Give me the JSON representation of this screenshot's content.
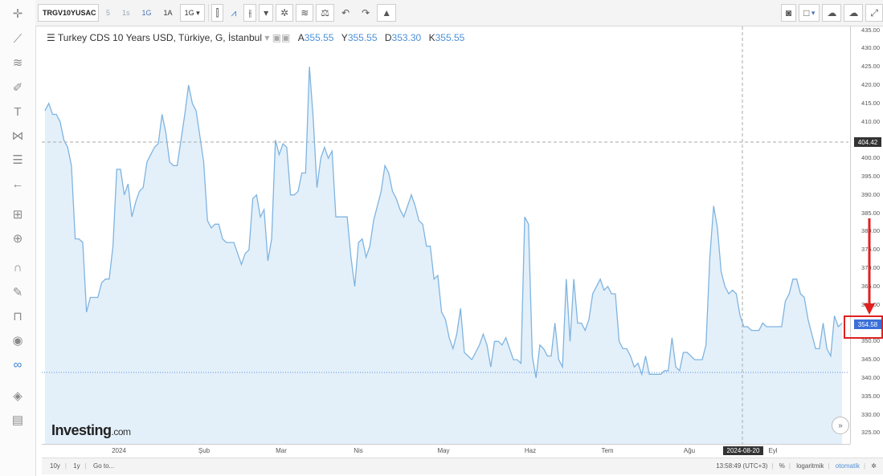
{
  "toolbar": {
    "symbol": "TRGV10YUSAC",
    "intervals": [
      "5",
      "1s",
      "1G",
      "1A",
      "1G"
    ],
    "active_interval": "1G"
  },
  "legend": {
    "title": "Turkey CDS 10 Years USD, Türkiye, G, İstanbul",
    "open_label": "A",
    "open_value": "355.55",
    "high_label": "Y",
    "high_value": "355.55",
    "low_label": "D",
    "low_value": "353.30",
    "close_label": "K",
    "close_value": "355.55"
  },
  "brand": {
    "name": "Investing",
    "suffix": ".com"
  },
  "crosshair": {
    "price_label": "404.42",
    "date_label": "2024-08-20"
  },
  "last_price_label": "354.58",
  "bottom_bar": {
    "ranges": [
      "10y",
      "1y",
      "Go to..."
    ],
    "time": "13:58:49 (UTC+3)",
    "percent": "%",
    "log": "logaritmik",
    "auto": "otomatik"
  },
  "colors": {
    "line": "#7fb4e0",
    "fill": "#e3f0fa",
    "accent": "#3a6fd8",
    "annotation": "#e02020"
  },
  "chart_data": {
    "type": "area",
    "title": "Turkey CDS 10 Years USD, Türkiye, G, İstanbul",
    "ylim": [
      322,
      436
    ],
    "yticks": [
      325,
      330,
      335,
      340,
      345,
      350,
      355,
      360,
      365,
      370,
      375,
      380,
      385,
      390,
      395,
      400,
      405,
      410,
      415,
      420,
      425,
      430,
      435
    ],
    "x_tick_labels": [
      "2024",
      "Şub",
      "Mar",
      "Nis",
      "May",
      "Haz",
      "Tem",
      "Ağu",
      "Eyl"
    ],
    "horizontal_line": 341.5,
    "series": [
      {
        "values": [
          413,
          415,
          412,
          412,
          410,
          405,
          403,
          398,
          378,
          378,
          377,
          358,
          362,
          362,
          362,
          366,
          367,
          367,
          376,
          397,
          397,
          390,
          393,
          384,
          388,
          391,
          392,
          399,
          401,
          403,
          404,
          412,
          407,
          399,
          398,
          398,
          405,
          412,
          420,
          415,
          413,
          406,
          399,
          383,
          381,
          382,
          382,
          378,
          377,
          377,
          377,
          374,
          371,
          374,
          375,
          389,
          390,
          384,
          386,
          372,
          378,
          405,
          401,
          404,
          403,
          390,
          390,
          391,
          396,
          396,
          425,
          411,
          392,
          400,
          403,
          400,
          402,
          384,
          384,
          384,
          384,
          373,
          365,
          377,
          378,
          373,
          376,
          383,
          387,
          391,
          398,
          396,
          391,
          389,
          386,
          384,
          387,
          390,
          387,
          383,
          382,
          376,
          376,
          367,
          368,
          358,
          356,
          351,
          348,
          352,
          359,
          347,
          346,
          345,
          347,
          349,
          352,
          349,
          343,
          350,
          350,
          349,
          351,
          348,
          345,
          345,
          344,
          384,
          382,
          346,
          340,
          349,
          348,
          346,
          346,
          355,
          345,
          343,
          367,
          350,
          367,
          355,
          355,
          353,
          356,
          363,
          365,
          367,
          364,
          365,
          363,
          363,
          350,
          348,
          348,
          346,
          343,
          344,
          341,
          346,
          341,
          341,
          341,
          341,
          342,
          342,
          351,
          343,
          342,
          347,
          347,
          346,
          345,
          345,
          345,
          349,
          373,
          387,
          381,
          369,
          365,
          363,
          364,
          363,
          357,
          354,
          354,
          353,
          353,
          353,
          355,
          354,
          354,
          354,
          354,
          354,
          361,
          363,
          367,
          367,
          363,
          362,
          356,
          352,
          348,
          348,
          355,
          348,
          346,
          357,
          354,
          355
        ]
      }
    ]
  }
}
